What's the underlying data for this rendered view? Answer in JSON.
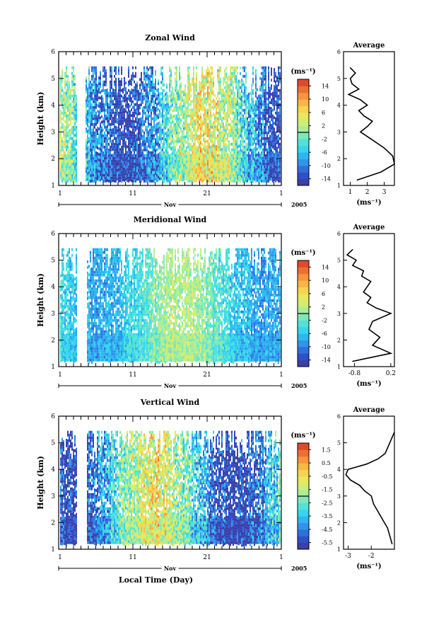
{
  "chart_data": [
    {
      "type": "heatmap",
      "title": "Zonal Wind",
      "xlabel": "",
      "ylabel": "Height (km)",
      "x_ticks": [
        "1",
        "11",
        "21",
        "1"
      ],
      "y_ticks": [
        "1",
        "2",
        "3",
        "4",
        "5",
        "6"
      ],
      "ylim": [
        1,
        6
      ],
      "month_label": "Nov",
      "year_label": "2005",
      "colorbar": {
        "unit": "(ms⁻¹)",
        "range": [
          -16,
          16
        ],
        "tick_labels": [
          "14",
          "10",
          "6",
          "2",
          "-2",
          "-6",
          "-10",
          "-14"
        ],
        "colors": [
          "#3b3fa8",
          "#2e50c8",
          "#2f6fe0",
          "#2f95ea",
          "#2bb8f0",
          "#33d6ee",
          "#4fe3d8",
          "#7fe8b8",
          "#aaed96",
          "#cdee72",
          "#e9e85a",
          "#f7d44c",
          "#f9b641",
          "#f8943a",
          "#f06e33",
          "#e04a2c"
        ]
      },
      "field_range": [
        -16,
        16
      ],
      "average_profile": {
        "title": "Average",
        "xlabel": "(ms⁻¹)",
        "x_ticks": [
          "1",
          "2",
          "3"
        ],
        "xlim": [
          0.6,
          3.6
        ],
        "y_ticks": [
          "1",
          "2",
          "3",
          "4",
          "5",
          "6"
        ],
        "height": [
          1.2,
          1.5,
          1.8,
          2.1,
          2.4,
          2.7,
          3.0,
          3.2,
          3.4,
          3.6,
          3.8,
          4.0,
          4.2,
          4.4,
          4.6,
          4.8,
          5.0,
          5.2,
          5.4
        ],
        "values": [
          1.4,
          2.8,
          3.6,
          3.5,
          3.0,
          2.3,
          1.6,
          2.0,
          2.3,
          1.8,
          1.5,
          2.0,
          1.6,
          0.9,
          1.5,
          1.1,
          1.0,
          1.3,
          1.0
        ]
      }
    },
    {
      "type": "heatmap",
      "title": "Meridional Wind",
      "xlabel": "",
      "ylabel": "Height (km)",
      "x_ticks": [
        "1",
        "11",
        "21",
        "1"
      ],
      "y_ticks": [
        "1",
        "2",
        "3",
        "4",
        "5",
        "6"
      ],
      "ylim": [
        1,
        6
      ],
      "month_label": "Nov",
      "year_label": "2005",
      "colorbar": {
        "unit": "(ms⁻¹)",
        "range": [
          -16,
          16
        ],
        "tick_labels": [
          "14",
          "10",
          "6",
          "2",
          "-2",
          "-6",
          "-10",
          "-14"
        ],
        "colors": [
          "#3b3fa8",
          "#2e50c8",
          "#2f6fe0",
          "#2f95ea",
          "#2bb8f0",
          "#33d6ee",
          "#4fe3d8",
          "#7fe8b8",
          "#aaed96",
          "#cdee72",
          "#e9e85a",
          "#f7d44c",
          "#f9b641",
          "#f8943a",
          "#f06e33",
          "#e04a2c"
        ]
      },
      "field_range": [
        -9,
        7
      ],
      "average_profile": {
        "title": "Average",
        "xlabel": "(ms⁻¹)",
        "x_ticks": [
          "-0.8",
          "0.2"
        ],
        "xlim": [
          -1.1,
          0.3
        ],
        "y_ticks": [
          "1",
          "2",
          "3",
          "4",
          "5",
          "6"
        ],
        "height": [
          1.2,
          1.5,
          1.8,
          2.1,
          2.4,
          2.7,
          3.0,
          3.2,
          3.4,
          3.6,
          3.8,
          4.0,
          4.2,
          4.4,
          4.6,
          4.8,
          5.0,
          5.2,
          5.4
        ],
        "values": [
          -0.85,
          0.2,
          -0.3,
          -0.1,
          -0.4,
          -0.3,
          0.2,
          -0.2,
          -0.45,
          -0.35,
          -0.55,
          -0.45,
          -0.35,
          -0.6,
          -0.55,
          -0.85,
          -0.75,
          -1.0,
          -0.85
        ]
      }
    },
    {
      "type": "heatmap",
      "title": "Vertical Wind",
      "xlabel": "Local Time (Day)",
      "ylabel": "Height (km)",
      "x_ticks": [
        "1",
        "11",
        "21",
        "1"
      ],
      "y_ticks": [
        "1",
        "2",
        "3",
        "4",
        "5",
        "6"
      ],
      "ylim": [
        1,
        6
      ],
      "month_label": "Nov",
      "year_label": "2005",
      "colorbar": {
        "unit": "(ms⁻¹)",
        "range": [
          -6,
          2
        ],
        "tick_labels": [
          "1.5",
          "0.5",
          "-0.5",
          "-1.5",
          "-2.5",
          "-3.5",
          "-4.5",
          "-5.5"
        ],
        "colors": [
          "#3b3fa8",
          "#2e50c8",
          "#2f6fe0",
          "#2f95ea",
          "#2bb8f0",
          "#33d6ee",
          "#4fe3d8",
          "#7fe8b8",
          "#aaed96",
          "#cdee72",
          "#e9e85a",
          "#f7d44c",
          "#f9b641",
          "#f8943a",
          "#f06e33",
          "#e04a2c"
        ]
      },
      "field_range": [
        -6,
        2
      ],
      "average_profile": {
        "title": "Average",
        "xlabel": "(ms⁻¹)",
        "x_ticks": [
          "-3",
          "-2"
        ],
        "xlim": [
          -3.2,
          -1.0
        ],
        "y_ticks": [
          "1",
          "2",
          "3",
          "4",
          "5",
          "6"
        ],
        "height": [
          1.2,
          1.5,
          1.8,
          2.1,
          2.4,
          2.7,
          3.0,
          3.2,
          3.4,
          3.6,
          3.8,
          4.0,
          4.2,
          4.4,
          4.6,
          4.8,
          5.0,
          5.2,
          5.4
        ],
        "values": [
          -1.1,
          -1.2,
          -1.3,
          -1.5,
          -1.7,
          -1.9,
          -2.0,
          -2.3,
          -2.5,
          -2.9,
          -3.1,
          -3.0,
          -2.2,
          -1.7,
          -1.4,
          -1.3,
          -1.2,
          -1.1,
          -1.0
        ]
      }
    }
  ]
}
